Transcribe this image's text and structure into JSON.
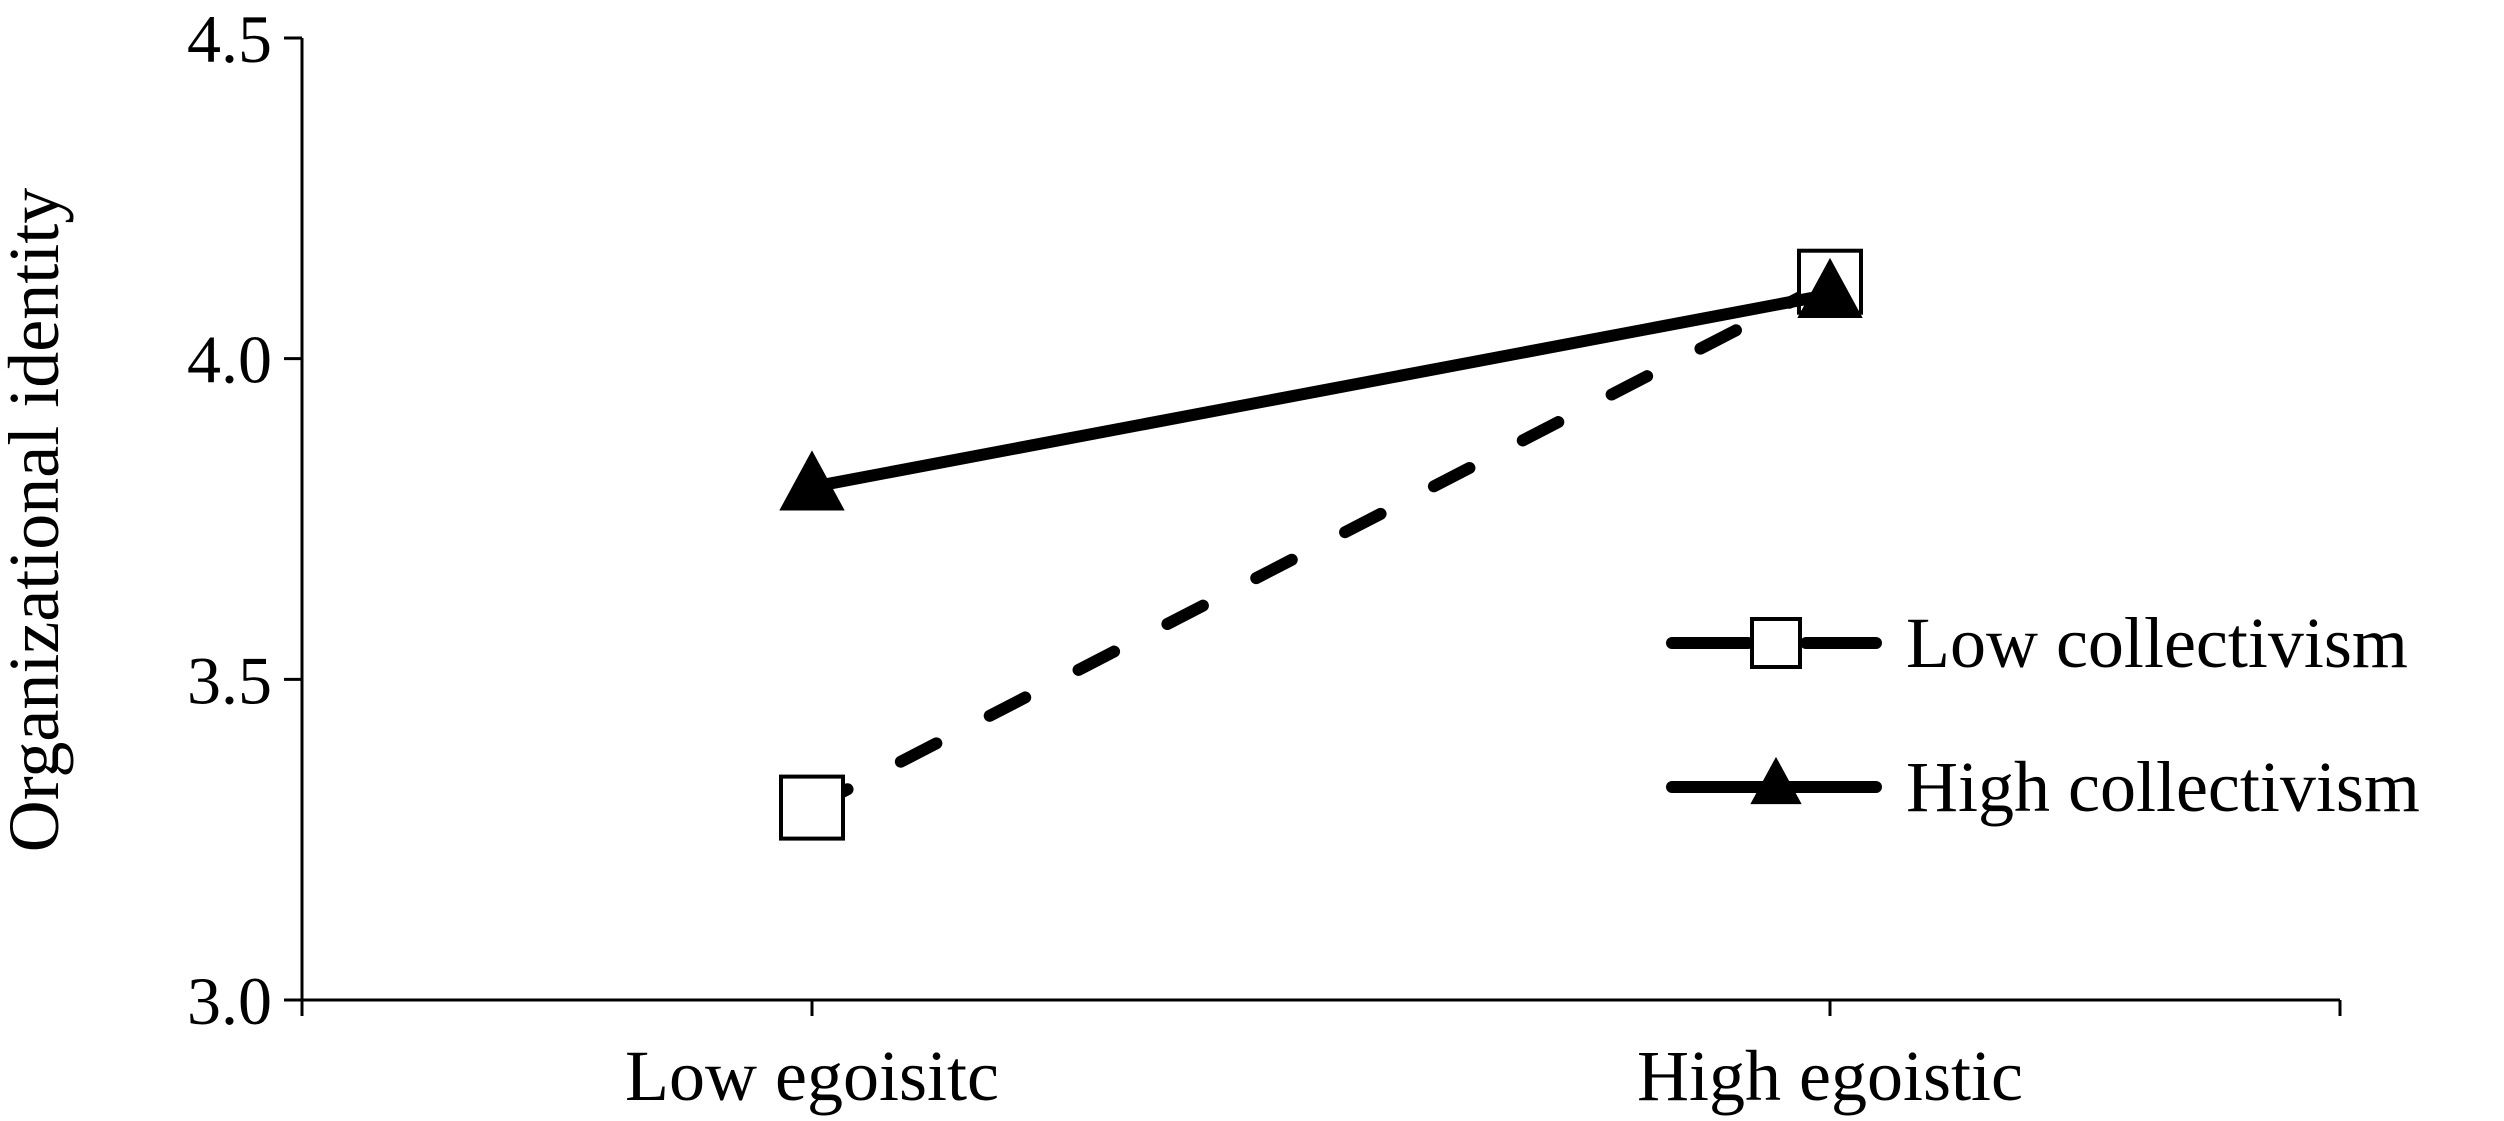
{
  "chart_data": {
    "type": "line",
    "categories": [
      "Low egoisitc",
      "High egoistic"
    ],
    "ylabel": "Organizational identity",
    "xlabel": "",
    "ylim": [
      3.0,
      4.5
    ],
    "yticks": [
      "3.0",
      "3.5",
      "4.0",
      "4.5"
    ],
    "ytick_values": [
      3.0,
      3.5,
      4.0,
      4.5
    ],
    "grid": false,
    "legend_position": "right",
    "series": [
      {
        "name": "Low collectivism",
        "values": [
          3.3,
          4.12
        ],
        "line_style": "dashed",
        "marker": "open-square",
        "color": "#000000"
      },
      {
        "name": "High collectivism",
        "values": [
          3.8,
          4.1
        ],
        "line_style": "solid",
        "marker": "filled-triangle",
        "color": "#000000"
      }
    ]
  }
}
